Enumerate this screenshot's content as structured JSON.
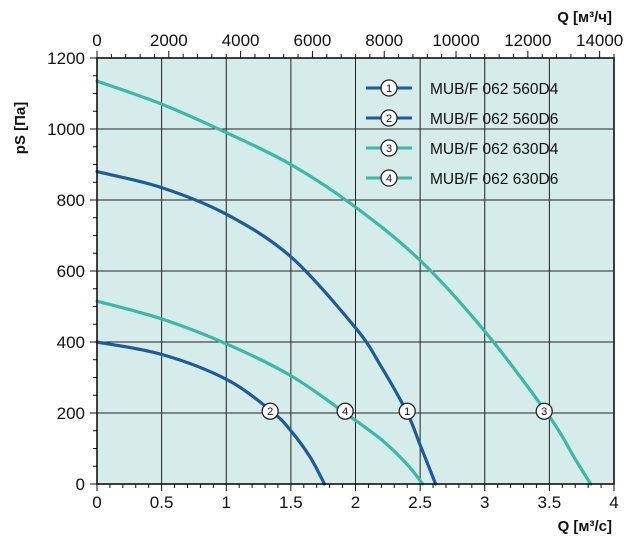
{
  "chart_data": {
    "type": "line",
    "xlabel": "Q [м³/с]",
    "x2label": "Q [м³/ч]",
    "ylabel": "pS [Па]",
    "xlim": [
      0,
      4
    ],
    "x2lim": [
      0,
      14400
    ],
    "ylim": [
      0,
      1200
    ],
    "x_ticks": [
      0,
      0.5,
      1,
      1.5,
      2,
      2.5,
      3,
      3.5,
      4
    ],
    "x_tick_labels": [
      "0",
      "0.5",
      "1",
      "1.5",
      "2",
      "2.5",
      "3",
      "3.5",
      "4"
    ],
    "x2_ticks": [
      0,
      2000,
      4000,
      6000,
      8000,
      10000,
      12000,
      14000
    ],
    "x2_tick_labels": [
      "0",
      "2000",
      "4000",
      "6000",
      "8000",
      "10000",
      "12000",
      "14000"
    ],
    "y_ticks": [
      0,
      200,
      400,
      600,
      800,
      1000,
      1200
    ],
    "y_tick_labels": [
      "0",
      "200",
      "400",
      "600",
      "800",
      "1000",
      "1200"
    ],
    "grid": true,
    "legend_position": "top-right",
    "background_color": "#d5ecea",
    "series": [
      {
        "name": "MUB/F 062 560D4",
        "marker": "1",
        "color": "#1d5c97",
        "x": [
          0,
          0.5,
          1,
          1.5,
          2,
          2.2,
          2.4,
          2.5,
          2.62
        ],
        "y": [
          880,
          835,
          760,
          640,
          440,
          330,
          200,
          110,
          0
        ],
        "marker_at": [
          2.4,
          205
        ]
      },
      {
        "name": "MUB/F 062 560D6",
        "marker": "2",
        "color": "#1d5c97",
        "x": [
          0,
          0.5,
          1,
          1.35,
          1.5,
          1.65,
          1.76
        ],
        "y": [
          400,
          365,
          295,
          205,
          150,
          75,
          0
        ],
        "marker_at": [
          1.34,
          205
        ]
      },
      {
        "name": "MUB/F 062 630D4",
        "marker": "3",
        "color": "#3ab8a8",
        "x": [
          0,
          0.5,
          1,
          1.5,
          2,
          2.5,
          3,
          3.5,
          3.7,
          3.82
        ],
        "y": [
          1135,
          1070,
          990,
          900,
          780,
          630,
          430,
          190,
          70,
          0
        ],
        "marker_at": [
          3.46,
          205
        ]
      },
      {
        "name": "MUB/F 062 630D6",
        "marker": "4",
        "color": "#3ab8a8",
        "x": [
          0,
          0.5,
          1,
          1.5,
          1.9,
          2.2,
          2.4,
          2.52
        ],
        "y": [
          515,
          465,
          395,
          305,
          205,
          125,
          55,
          0
        ],
        "marker_at": [
          1.92,
          205
        ]
      }
    ]
  }
}
